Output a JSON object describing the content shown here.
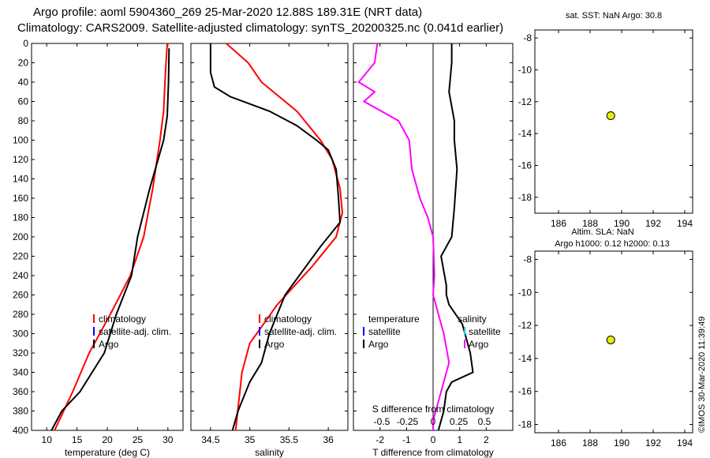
{
  "title_line1": "Argo profile: aoml 5904360_269 25-Mar-2020 12.88S 189.31E (NRT data)",
  "title_line2": "Climatology: CARS2009. Satellite-adjusted climatology: synTS_20200325.nc (0.041d earlier)",
  "credit": "©IMOS 30-Mar-2020 11:39:49",
  "colors": {
    "climatology": "#ff0000",
    "satellite": "#0000ff",
    "argo": "#000000",
    "salinity_diff": "#ff00ff",
    "sat_salinity": "#00cccc",
    "marker": "#e6ee00"
  },
  "chart_data": [
    {
      "id": "temperature",
      "type": "line",
      "xlabel": "temperature (deg C)",
      "xlim": [
        7.5,
        32.5
      ],
      "xticks": [
        10,
        15,
        20,
        25,
        30
      ],
      "ylim": [
        0,
        400
      ],
      "yticks": [
        0,
        20,
        40,
        60,
        80,
        100,
        120,
        140,
        160,
        180,
        200,
        220,
        240,
        260,
        280,
        300,
        320,
        340,
        360,
        380,
        400
      ],
      "legend": [
        "climatology",
        "satellite-adj. clim.",
        "Argo"
      ],
      "series": [
        {
          "name": "climatology",
          "points": [
            [
              29.9,
              0
            ],
            [
              29.6,
              30
            ],
            [
              29.3,
              70
            ],
            [
              28.7,
              100
            ],
            [
              27.5,
              150
            ],
            [
              26.0,
              200
            ],
            [
              23.8,
              240
            ],
            [
              20.5,
              280
            ],
            [
              17.0,
              320
            ],
            [
              14.3,
              360
            ],
            [
              11.3,
              400
            ]
          ]
        },
        {
          "name": "Argo",
          "points": [
            [
              30.2,
              5
            ],
            [
              30.1,
              40
            ],
            [
              29.9,
              75
            ],
            [
              29.3,
              100
            ],
            [
              27.0,
              150
            ],
            [
              25.0,
              200
            ],
            [
              24.0,
              240
            ],
            [
              21.5,
              280
            ],
            [
              19.5,
              320
            ],
            [
              15.5,
              360
            ],
            [
              12.5,
              380
            ],
            [
              10.8,
              400
            ]
          ]
        }
      ]
    },
    {
      "id": "salinity",
      "type": "line",
      "xlabel": "salinity",
      "xlim": [
        34.25,
        36.25
      ],
      "xticks": [
        34.5,
        35,
        35.5,
        36
      ],
      "ylim": [
        0,
        400
      ],
      "legend": [
        "climatology",
        "satellite-adj. clim.",
        "Argo"
      ],
      "series": [
        {
          "name": "climatology",
          "points": [
            [
              34.7,
              0
            ],
            [
              34.98,
              20
            ],
            [
              35.15,
              40
            ],
            [
              35.6,
              70
            ],
            [
              35.9,
              100
            ],
            [
              36.05,
              120
            ],
            [
              36.15,
              150
            ],
            [
              36.18,
              175
            ],
            [
              36.1,
              200
            ],
            [
              35.8,
              230
            ],
            [
              35.35,
              270
            ],
            [
              35.0,
              310
            ],
            [
              34.9,
              340
            ],
            [
              34.82,
              400
            ]
          ]
        },
        {
          "name": "Argo",
          "points": [
            [
              34.5,
              0
            ],
            [
              34.5,
              30
            ],
            [
              34.55,
              45
            ],
            [
              34.75,
              55
            ],
            [
              35.25,
              70
            ],
            [
              35.6,
              85
            ],
            [
              35.85,
              100
            ],
            [
              36.0,
              110
            ],
            [
              36.1,
              130
            ],
            [
              36.13,
              160
            ],
            [
              36.15,
              185
            ],
            [
              35.9,
              210
            ],
            [
              35.45,
              260
            ],
            [
              35.25,
              300
            ],
            [
              35.15,
              330
            ],
            [
              35.0,
              350
            ],
            [
              34.85,
              380
            ],
            [
              34.78,
              400
            ]
          ]
        }
      ]
    },
    {
      "id": "differences",
      "type": "line",
      "xlabel": "T difference from climatology",
      "top_xlabel": "S difference from climatology",
      "xlim": [
        -3,
        3
      ],
      "xticks": [
        -2,
        -1,
        0,
        1,
        2
      ],
      "top_xticks": [
        -0.5,
        -0.25,
        0,
        0.25,
        0.5
      ],
      "top_ticklabels": [
        "-0.5",
        "-0.25",
        "0",
        "0.25",
        "0.5"
      ],
      "ylim": [
        0,
        400
      ],
      "legend_left": [
        "temperature",
        "satellite",
        "Argo"
      ],
      "legend_right": [
        "salinity",
        "satellite",
        "Argo"
      ],
      "series": [
        {
          "name": "T difference (Argo)",
          "points": [
            [
              0.7,
              0
            ],
            [
              0.7,
              20
            ],
            [
              0.6,
              50
            ],
            [
              0.8,
              80
            ],
            [
              0.8,
              100
            ],
            [
              0.9,
              130
            ],
            [
              0.8,
              170
            ],
            [
              0.7,
              200
            ],
            [
              0.3,
              220
            ],
            [
              0.5,
              250
            ],
            [
              0.5,
              260
            ],
            [
              0.6,
              270
            ],
            [
              1.1,
              290
            ],
            [
              1.2,
              300
            ],
            [
              1.4,
              320
            ],
            [
              1.5,
              340
            ],
            [
              0.7,
              350
            ],
            [
              0.5,
              360
            ],
            [
              0.4,
              380
            ],
            [
              0.2,
              400
            ]
          ]
        },
        {
          "name": "S difference (Argo)",
          "points": [
            [
              -2.1,
              0
            ],
            [
              -2.2,
              20
            ],
            [
              -2.8,
              40
            ],
            [
              -2.2,
              50
            ],
            [
              -2.6,
              60
            ],
            [
              -1.3,
              80
            ],
            [
              -0.9,
              100
            ],
            [
              -0.8,
              130
            ],
            [
              -0.5,
              160
            ],
            [
              -0.2,
              180
            ],
            [
              0.0,
              200
            ],
            [
              0.05,
              240
            ],
            [
              0.0,
              260
            ],
            [
              0.4,
              300
            ],
            [
              0.6,
              330
            ],
            [
              0.3,
              360
            ],
            [
              0.0,
              390
            ],
            [
              0.0,
              400
            ]
          ]
        }
      ]
    },
    {
      "id": "sst-map",
      "type": "scatter",
      "title": "sat. SST: NaN Argo: 30.8",
      "xlim": [
        184.5,
        194.5
      ],
      "xticks": [
        186,
        188,
        190,
        192,
        194
      ],
      "ylim": [
        -19,
        -7.5
      ],
      "yticks": [
        -8,
        -10,
        -12,
        -14,
        -16,
        -18
      ],
      "points": [
        [
          189.31,
          -12.88
        ]
      ]
    },
    {
      "id": "sla-map",
      "type": "scatter",
      "title": "Altim. SLA: NaN",
      "subtitle": "Argo h1000: 0.12 h2000: 0.13",
      "xlim": [
        184.5,
        194.5
      ],
      "xticks": [
        186,
        188,
        190,
        192,
        194
      ],
      "ylim": [
        -18.5,
        -7.5
      ],
      "yticks": [
        -8,
        -10,
        -12,
        -14,
        -16,
        -18
      ],
      "points": [
        [
          189.31,
          -12.88
        ]
      ]
    }
  ]
}
